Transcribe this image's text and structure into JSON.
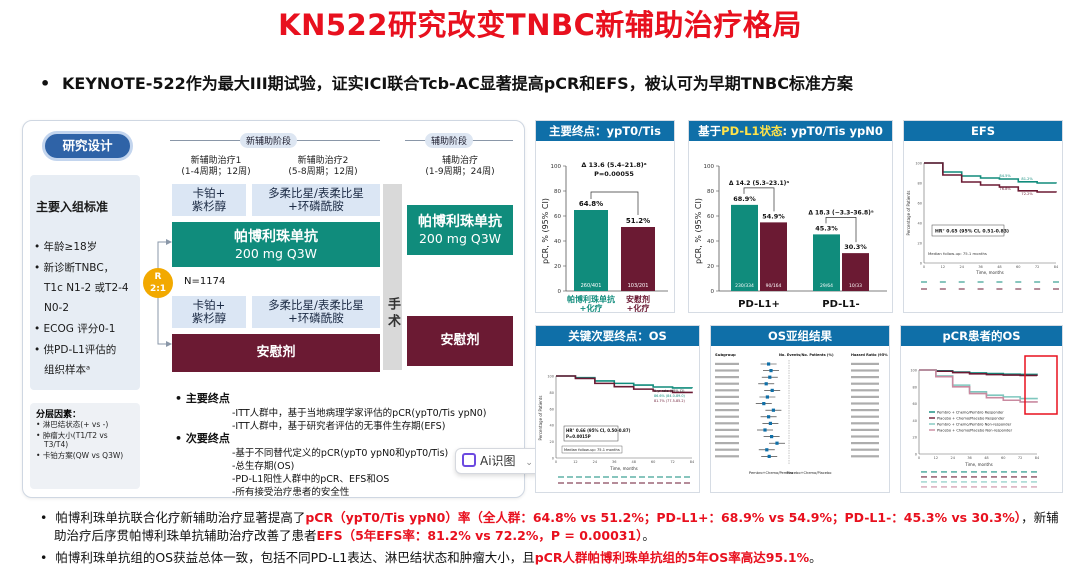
{
  "title": "KN522研究改变TNBC新辅助治疗格局",
  "top_bullet": "KEYNOTE-522作为最大III期试验，证实ICI联合Tcb-AC显著提高pCR和EFS，被认可为早期TNBC标准方案",
  "design": {
    "badge": "研究设计",
    "criteria_title": "主要入组标准",
    "criteria": [
      "年龄≥18岁",
      "新诊断TNBC，",
      "T1c N1-2 或T2-4",
      "N0-2",
      "ECOG 评分0-1",
      "供PD-L1评估的",
      "组织样本ᵃ"
    ],
    "strata_title": "分层因素：",
    "strata": [
      "淋巴结状态(+ vs -)",
      "肿瘤大小(T1/T2 vs",
      "T3/T4)",
      "卡铂方案(QW vs Q3W)"
    ],
    "phase_neo": "新辅助阶段",
    "phase_adj": "辅助阶段",
    "neo1": "新辅助治疗1",
    "neo1_sub": "(1-4周期；12周)",
    "neo2": "新辅助治疗2",
    "neo2_sub": "(5-8周期；12周)",
    "adj": "辅助治疗",
    "adj_sub": "(1-9周期；24周)",
    "carbo_pac": "卡铂+\n紫杉醇",
    "anthra": "多柔比星/表柔比星\n+环磷酰胺",
    "pembro": "帕博利珠单抗",
    "pembro_dose": "200 mg Q3W",
    "placebo": "安慰剂",
    "surgery": "手术",
    "randomize": "R\n2:1",
    "n": "N=1174",
    "primary_head": "主要终点",
    "primary": [
      "-ITT人群中，基于当地病理学家评估的pCR(ypT0/Tis ypN0)",
      "-ITT人群中，基于研究者评估的无事件生存期(EFS)"
    ],
    "secondary_head": "次要终点",
    "secondary": [
      "-基于不同替代定义的pCR(ypT0 ypN0和ypT0/Tis)",
      "-总生存期(OS)",
      "-PD-L1阳性人群中的pCR、EFS和OS",
      "-所有接受治疗患者的安全性"
    ]
  },
  "ai_button": "Ai识图",
  "panels": {
    "pcr": {
      "title": "主要终点：ypT0/Tis ypN0",
      "ylabel": "pCR, % (95% CI)",
      "delta": "Δ 13.6 (5.4–21.8)ᵃ",
      "p": "P=0.00055",
      "bar_labels": [
        "64.8%",
        "51.2%"
      ],
      "n_labels": [
        "260/401",
        "103/201"
      ],
      "x_labels": [
        "帕博利珠单抗\n+化疗",
        "安慰剂\n+化疗"
      ]
    },
    "pdl1": {
      "title_pre": "基于",
      "title_hl": "PD-L1状态",
      "title_post": ": ypT0/Tis ypN0",
      "ylabel": "pCR, % (95% CI)",
      "delta1": "Δ 14.2 (5.3–23.1)ᵃ",
      "delta2": "Δ 18.3 (−3.3–36.8)ᵃ",
      "bar_labels": [
        "68.9%",
        "54.9%",
        "45.3%",
        "30.3%"
      ],
      "n_labels": [
        "230/334",
        "90/164",
        "29/64",
        "10/33"
      ],
      "x_labels": [
        "PD-L1+",
        "PD-L1-"
      ]
    },
    "efs": {
      "title": "EFS",
      "hr": "HR° 0.65 (95% CI, 0.51-0.83)",
      "median": "Median follow-up: 75.1 months",
      "xlabel": "Time, months",
      "ylabel": "Percentage of Patients",
      "ann1": "84.5%",
      "ann2": "81.2%",
      "ann3": "76.8%",
      "ann4": "72.2%"
    },
    "os": {
      "title": "关键次要终点：OS",
      "hr": "HR° 0.66 (95% CI, 0.50-0.87)",
      "p": "P=0.0015P",
      "median": "Median follow-up: 75.1 months",
      "xlabel": "Time, months",
      "ylabel": "Percentage of Patients",
      "legend1": "5-yr rate (95% CI)",
      "legend2": "86.6% (84.0-89.0)",
      "legend3": "81.7% (77.5-85.2)"
    },
    "subgroup": {
      "title": "OS亚组结果",
      "col_headers": [
        "Subgroup",
        "No. Events/No. Patients (%)",
        "Hazard Ratio (95% CI)"
      ],
      "left_label": "Pembro+Chemo/Pembro",
      "right_label": "Placebo+Chemo/Placebo"
    },
    "pcr_os": {
      "title": "pCR患者的OS",
      "legend": [
        "Pembro + Chemo/Pembro Responder",
        "Placebo + Chemo/Placebo Responder",
        "Pembro + Chemo/Pembro Non-responder",
        "Placebo + Chemo/Placebo Non-responder"
      ],
      "xlabel": "Time, months"
    }
  },
  "notes": {
    "line1_a": "帕博利珠单抗联合化疗新辅助治疗显著提高了",
    "line1_b": "pCR（ypT0/Tis ypN0）率（全人群：64.8% vs 51.2%；PD-L1+：68.9% vs 54.9%；PD-L1-：45.3% vs 30.3%）",
    "line1_c": "，新辅",
    "line2_a": "助治疗后序贯帕博利珠单抗辅助治疗改善了患者",
    "line2_b": "EFS（5年EFS率：81.2% vs 72.2%，P = 0.00031）",
    "line2_c": "。",
    "line3_a": "帕博利珠单抗组的OS获益总体一致，包括不同PD-L1表达、淋巴结状态和肿瘤大小，且",
    "line3_b": "pCR人群帕博利珠单抗组的5年OS率高达95.1%",
    "line3_c": "。"
  },
  "colors": {
    "title_red": "#e8101e",
    "teal": "#108c7c",
    "maroon": "#6b1a33",
    "header_blue": "#0f6fa8",
    "badge_blue": "#2f63a7",
    "randomize_orange": "#f2a900"
  },
  "chart_data": [
    {
      "type": "bar",
      "title": "主要终点：ypT0/Tis ypN0",
      "categories": [
        "帕博利珠单抗+化疗",
        "安慰剂+化疗"
      ],
      "values": [
        64.8,
        51.2
      ],
      "ylabel": "pCR, % (95% CI)",
      "ylim": [
        0,
        100
      ]
    },
    {
      "type": "bar",
      "title": "基于PD-L1状态: ypT0/Tis ypN0",
      "categories": [
        "PD-L1+",
        "PD-L1-"
      ],
      "series": [
        {
          "name": "帕博利珠单抗+化疗",
          "values": [
            68.9,
            45.3
          ]
        },
        {
          "name": "安慰剂+化疗",
          "values": [
            54.9,
            30.3
          ]
        }
      ],
      "ylabel": "pCR, % (95% CI)",
      "ylim": [
        0,
        100
      ]
    },
    {
      "type": "line",
      "title": "EFS",
      "x": [
        0,
        12,
        24,
        36,
        48,
        60,
        72,
        84
      ],
      "series": [
        {
          "values": [
            100,
            91,
            87,
            85,
            84,
            81.2,
            80,
            79.5
          ]
        },
        {
          "values": [
            100,
            88,
            81,
            78,
            76,
            72.2,
            71,
            70.5
          ]
        }
      ],
      "xlabel": "Time, months",
      "ylabel": "Percentage of Patients",
      "ylim": [
        0,
        100
      ]
    },
    {
      "type": "line",
      "title": "关键次要终点：OS",
      "x": [
        0,
        12,
        24,
        36,
        48,
        60,
        72,
        84
      ],
      "series": [
        {
          "values": [
            100,
            98,
            94,
            91,
            89,
            86.6,
            85.5,
            85
          ]
        },
        {
          "values": [
            100,
            97,
            91,
            87,
            84,
            81.7,
            80,
            79
          ]
        }
      ],
      "xlabel": "Time, months",
      "ylabel": "Percentage of Patients",
      "ylim": [
        0,
        100
      ]
    },
    {
      "type": "line",
      "title": "pCR患者的OS",
      "x": [
        0,
        12,
        24,
        36,
        48,
        60,
        72,
        84
      ],
      "series": [
        {
          "values": [
            100,
            99,
            97.5,
            96.5,
            95.8,
            95.1,
            94.8,
            94.5
          ]
        },
        {
          "values": [
            100,
            98.5,
            97,
            95.5,
            94.5,
            94,
            93.5,
            93
          ]
        },
        {
          "values": [
            100,
            93,
            82,
            74,
            70,
            68,
            66,
            65
          ]
        },
        {
          "values": [
            100,
            92,
            80,
            72,
            67,
            64,
            62,
            61
          ]
        }
      ],
      "xlabel": "Time, months",
      "ylim": [
        0,
        100
      ]
    }
  ]
}
